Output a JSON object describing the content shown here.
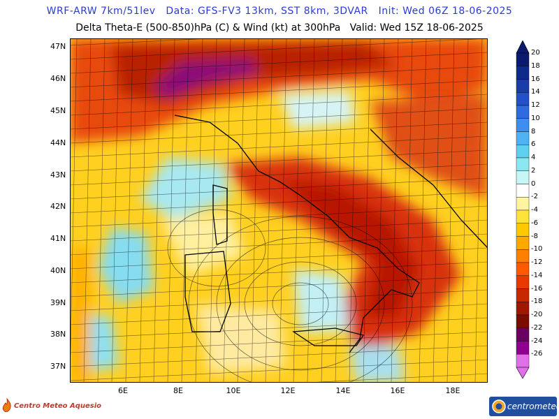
{
  "header": {
    "line1": "WRF-ARW 7km/51lev   Data: GFS-FV3 13km, SST 8km, 3DVAR   Init: Wed 06Z 18-06-2025",
    "line2": "Delta Theta-E (500-850)hPa (C) & Wind (kt) at 300hPa   Valid: Wed 15Z 18-06-2025"
  },
  "map": {
    "lat_labels": [
      "47N",
      "46N",
      "45N",
      "44N",
      "43N",
      "42N",
      "41N",
      "40N",
      "39N",
      "38N",
      "37N"
    ],
    "lon_labels": [
      "6E",
      "8E",
      "10E",
      "12E",
      "14E",
      "16E",
      "18E"
    ]
  },
  "colorbar": {
    "labels": [
      "20",
      "18",
      "16",
      "14",
      "12",
      "10",
      "8",
      "6",
      "4",
      "2",
      "0",
      "-2",
      "-4",
      "-6",
      "-8",
      "-10",
      "-12",
      "-14",
      "-16",
      "-18",
      "-20",
      "-22",
      "-24",
      "-26"
    ],
    "colors": [
      "#0a1a6e",
      "#102a8c",
      "#1a3ca8",
      "#2450c8",
      "#2e6ae0",
      "#3d8ef0",
      "#4fb2f5",
      "#5fd0f0",
      "#8ce8f0",
      "#c6f6f6",
      "#ffffff",
      "#fff5a0",
      "#ffe23a",
      "#ffc800",
      "#ffa800",
      "#ff8000",
      "#ff5a00",
      "#e83a00",
      "#c82800",
      "#a01800",
      "#7a0c00",
      "#6a0060",
      "#900090",
      "#e070e8"
    ]
  },
  "logos": {
    "left": "Centro Meteo Aquesio",
    "right": "centrometeo"
  }
}
